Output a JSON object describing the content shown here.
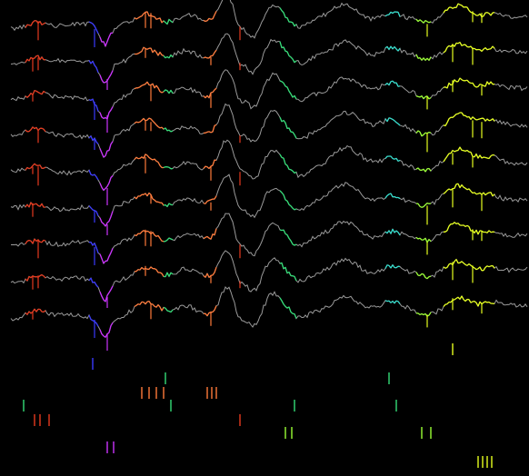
{
  "view": {
    "background": "#000000",
    "trace_color": "#9a9a9a"
  },
  "trace_count": 9,
  "unit_colors": {
    "blue": "#3a3aff",
    "magenta": "#cc33ff",
    "orange": "#ff7a3a",
    "red": "#e63a1e",
    "green": "#33dd77",
    "lime": "#99ff33",
    "yellow": "#e6ff1e",
    "cyan": "#33ddcc"
  }
}
